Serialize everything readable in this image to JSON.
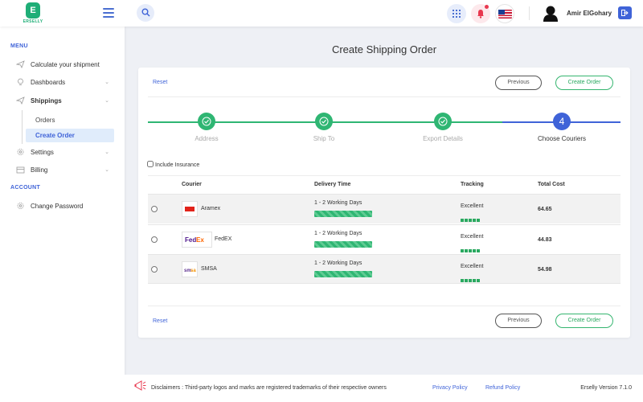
{
  "brand": {
    "name": "ERSELLY",
    "logo_letter": "E",
    "accent": "#1fae77",
    "primary": "#3f63d8"
  },
  "header": {
    "user_name": "Amir ElGohary",
    "notification_badge": true,
    "language_flag": "us-flag-icon"
  },
  "sidebar": {
    "menu_title": "MENU",
    "account_title": "ACCOUNT",
    "items": [
      {
        "label": "Calculate your shipment",
        "icon": "airplane-icon"
      },
      {
        "label": "Dashboards",
        "icon": "bulb-icon"
      },
      {
        "label": "Shippings",
        "icon": "airplane-icon"
      },
      {
        "label": "Settings",
        "icon": "gear-icon"
      },
      {
        "label": "Billing",
        "icon": "wallet-icon"
      }
    ],
    "subitems": [
      {
        "label": "Orders"
      },
      {
        "label": "Create Order"
      }
    ],
    "account_items": [
      {
        "label": "Change Password",
        "icon": "gear-icon"
      }
    ]
  },
  "page": {
    "title": "Create Shipping Order"
  },
  "actions": {
    "reset": "Reset",
    "previous": "Previous",
    "create": "Create Order"
  },
  "stepper": {
    "current": 4,
    "steps": [
      {
        "label": "Address",
        "status": "done"
      },
      {
        "label": "Ship To",
        "status": "done"
      },
      {
        "label": "Export Details",
        "status": "done"
      },
      {
        "label": "Choose Couriers",
        "status": "current",
        "number": "4"
      }
    ]
  },
  "insurance": {
    "label": "Include Insurance",
    "checked": false
  },
  "table": {
    "headers": {
      "courier": "Courier",
      "delivery": "Delivery Time",
      "tracking": "Tracking",
      "cost": "Total Cost"
    },
    "rows": [
      {
        "courier": "Aramex",
        "logo": "aramex-logo",
        "delivery": "1 - 2 Working Days",
        "delivery_progress": 1.0,
        "tracking": "Excellent",
        "tracking_rating": 5,
        "cost": "64.65"
      },
      {
        "courier": "FedEX",
        "logo": "fedex-logo",
        "delivery": "1 - 2 Working Days",
        "delivery_progress": 1.0,
        "tracking": "Excellent",
        "tracking_rating": 5,
        "cost": "44.83"
      },
      {
        "courier": "SMSA",
        "logo": "smsa-logo",
        "delivery": "1 - 2 Working Days",
        "delivery_progress": 1.0,
        "tracking": "Excellent",
        "tracking_rating": 5,
        "cost": "54.98"
      }
    ]
  },
  "footer": {
    "disclaimer": "Disclaimers : Third-party logos and marks are registered trademarks of their respective owners",
    "privacy": "Privacy Policy",
    "refund": "Refund Policy",
    "version": "Erselly Version 7.1.0"
  }
}
